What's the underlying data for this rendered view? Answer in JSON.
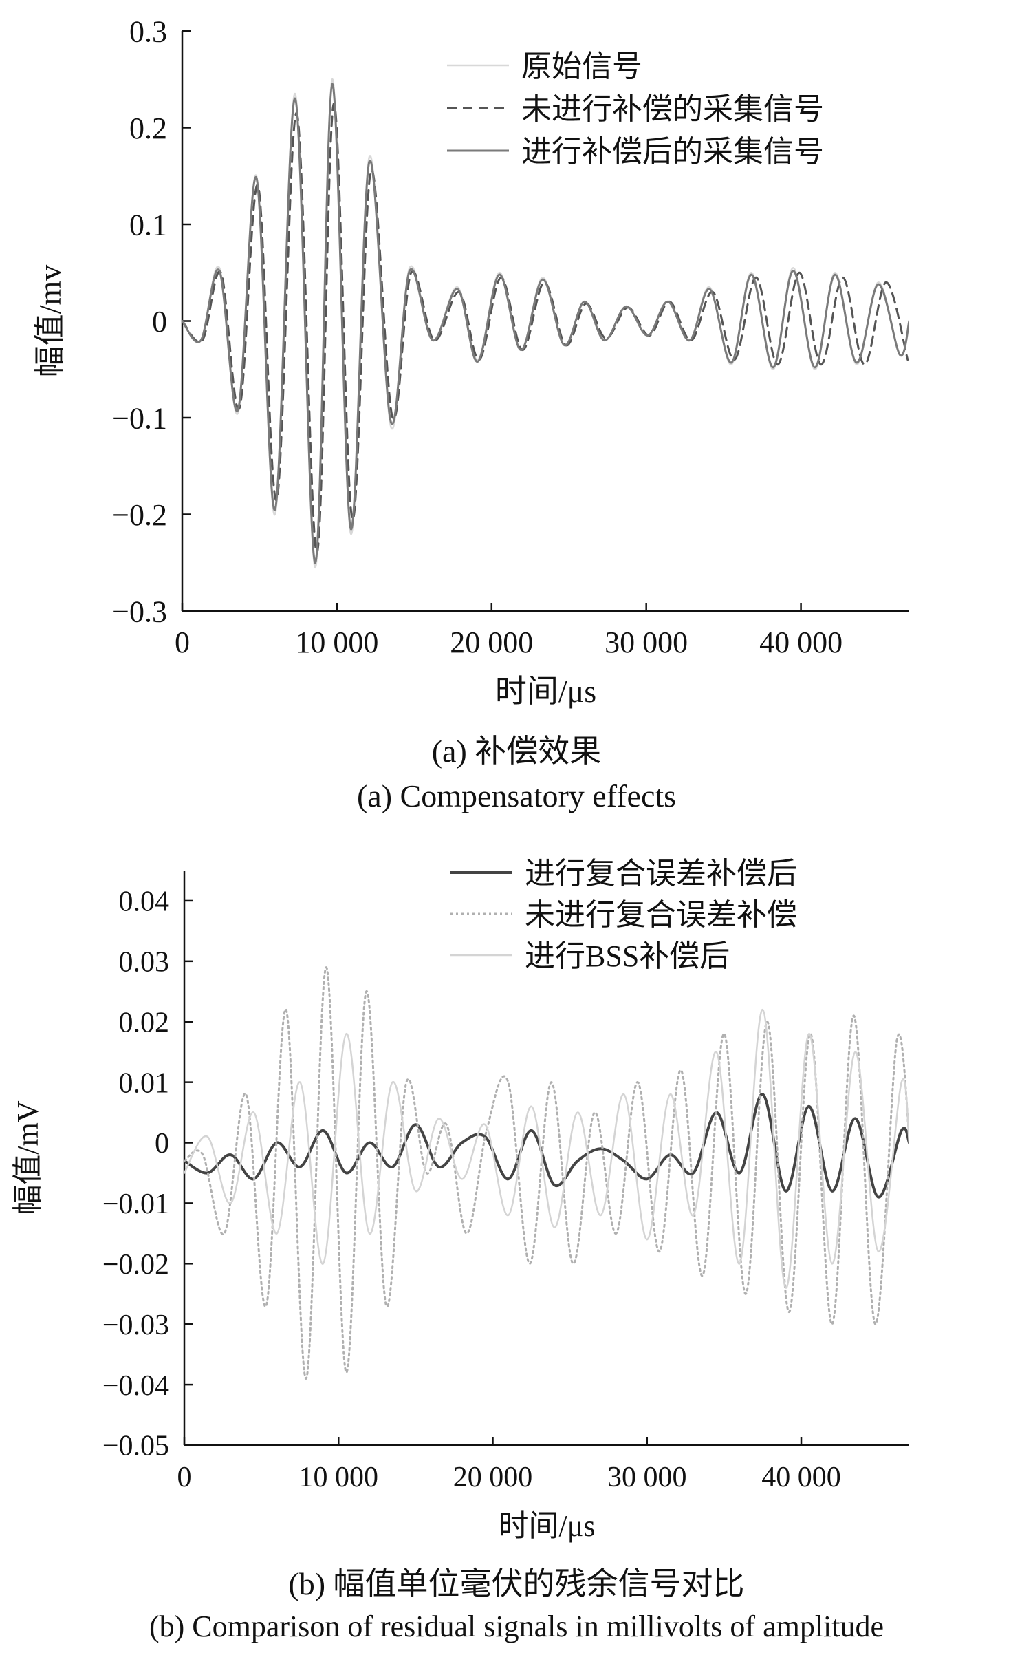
{
  "figure": {
    "caption_a_cn": "(a) 补偿效果",
    "caption_a_en": "(a) Compensatory effects",
    "caption_b_cn": "(b) 幅值单位毫伏的残余信号对比",
    "caption_b_en": "(b) Comparison of residual signals in millivolts of amplitude"
  },
  "chart_data": [
    {
      "id": "a",
      "type": "line",
      "title": "",
      "xlabel": "时间/μs",
      "ylabel": "幅值/mv",
      "xlim": [
        0,
        47000
      ],
      "ylim": [
        -0.3,
        0.3
      ],
      "xticks": [
        0,
        10000,
        20000,
        30000,
        40000
      ],
      "xtick_labels": [
        "0",
        "10 000",
        "20 000",
        "30 000",
        "40 000"
      ],
      "yticks": [
        -0.3,
        -0.2,
        -0.1,
        0,
        0.1,
        0.2,
        0.3
      ],
      "ytick_labels": [
        "−0.3",
        "−0.2",
        "−0.1",
        "0",
        "0.1",
        "0.2",
        "0.3"
      ],
      "grid": false,
      "legend_position": "top-right",
      "colors": {
        "original": "#d8d8d8",
        "uncompensated": "#555555",
        "compensated": "#7a7a7a"
      },
      "series": [
        {
          "name": "原始信号",
          "style": "solid-light",
          "x": [
            0,
            1200,
            2400,
            3600,
            4800,
            6000,
            7300,
            8600,
            9700,
            10900,
            12100,
            13500,
            14700,
            16200,
            17800,
            19100,
            20500,
            21900,
            23300,
            24700,
            26000,
            27300,
            28700,
            30100,
            31400,
            32800,
            34100,
            35500,
            36800,
            38200,
            39500,
            40900,
            42200,
            43600,
            45000,
            46400,
            47000
          ],
          "y": [
            0,
            -0.02,
            0.055,
            -0.095,
            0.15,
            -0.2,
            0.235,
            -0.255,
            0.25,
            -0.22,
            0.17,
            -0.11,
            0.055,
            -0.02,
            0.035,
            -0.04,
            0.05,
            -0.03,
            0.045,
            -0.025,
            0.02,
            -0.02,
            0.015,
            -0.015,
            0.02,
            -0.02,
            0.035,
            -0.045,
            0.05,
            -0.05,
            0.055,
            -0.05,
            0.05,
            -0.045,
            0.04,
            -0.035,
            0.0
          ]
        },
        {
          "name": "未进行补偿的采集信号",
          "style": "dashed",
          "x": [
            0,
            1300,
            2500,
            3700,
            4900,
            6100,
            7400,
            8700,
            9800,
            11000,
            12200,
            13600,
            14800,
            16300,
            17900,
            19200,
            20600,
            22000,
            23400,
            24800,
            26100,
            27400,
            28800,
            30200,
            31500,
            32900,
            34300,
            35700,
            37100,
            38500,
            39900,
            41300,
            42700,
            44100,
            45500,
            46900
          ],
          "y": [
            0,
            -0.02,
            0.05,
            -0.09,
            0.14,
            -0.185,
            0.215,
            -0.24,
            0.225,
            -0.205,
            0.155,
            -0.1,
            0.05,
            -0.02,
            0.03,
            -0.04,
            0.045,
            -0.03,
            0.04,
            -0.025,
            0.018,
            -0.018,
            0.014,
            -0.015,
            0.02,
            -0.02,
            0.03,
            -0.04,
            0.045,
            -0.045,
            0.05,
            -0.045,
            0.045,
            -0.045,
            0.04,
            -0.04
          ]
        },
        {
          "name": "进行补偿后的采集信号",
          "style": "solid",
          "x": [
            0,
            1200,
            2400,
            3600,
            4800,
            6000,
            7300,
            8600,
            9700,
            10900,
            12100,
            13500,
            14700,
            16200,
            17800,
            19100,
            20500,
            21900,
            23300,
            24700,
            26000,
            27300,
            28700,
            30100,
            31400,
            32800,
            34100,
            35500,
            36800,
            38200,
            39500,
            40900,
            42200,
            43600,
            45000,
            46400,
            47000
          ],
          "y": [
            0,
            -0.02,
            0.052,
            -0.092,
            0.148,
            -0.195,
            0.23,
            -0.25,
            0.245,
            -0.215,
            0.165,
            -0.105,
            0.052,
            -0.02,
            0.033,
            -0.042,
            0.048,
            -0.03,
            0.043,
            -0.025,
            0.02,
            -0.02,
            0.015,
            -0.015,
            0.02,
            -0.02,
            0.033,
            -0.043,
            0.048,
            -0.048,
            0.052,
            -0.048,
            0.048,
            -0.043,
            0.038,
            -0.035,
            0.0
          ]
        }
      ]
    },
    {
      "id": "b",
      "type": "line",
      "title": "",
      "xlabel": "时间/μs",
      "ylabel": "幅值/mV",
      "xlim": [
        0,
        47000
      ],
      "ylim": [
        -0.05,
        0.045
      ],
      "xticks": [
        0,
        10000,
        20000,
        30000,
        40000
      ],
      "xtick_labels": [
        "0",
        "10 000",
        "20 000",
        "30 000",
        "40 000"
      ],
      "yticks": [
        -0.05,
        -0.04,
        -0.03,
        -0.02,
        -0.01,
        0,
        0.01,
        0.02,
        0.03,
        0.04
      ],
      "ytick_labels": [
        "−0.05",
        "−0.04",
        "−0.03",
        "−0.02",
        "−0.01",
        "0",
        "0.01",
        "0.02",
        "0.03",
        "0.04"
      ],
      "grid": false,
      "legend_position": "top-right",
      "colors": {
        "compensated": "#444444",
        "uncompensated": "#b0b0b0",
        "bss": "#d4d4d4"
      },
      "series": [
        {
          "name": "进行复合误差补偿后",
          "style": "solid-dark",
          "x": [
            0,
            1500,
            3000,
            4500,
            6000,
            7500,
            9000,
            10500,
            12000,
            13500,
            15000,
            16500,
            18000,
            19500,
            21000,
            22500,
            24000,
            25500,
            27000,
            28500,
            30000,
            31500,
            33000,
            34500,
            36000,
            37500,
            39000,
            40500,
            42000,
            43500,
            45000,
            46500,
            47000
          ],
          "y": [
            -0.003,
            -0.005,
            -0.002,
            -0.006,
            0.0,
            -0.004,
            0.002,
            -0.005,
            0.0,
            -0.004,
            0.003,
            -0.004,
            0.0,
            0.001,
            -0.006,
            0.002,
            -0.007,
            -0.003,
            -0.001,
            -0.003,
            -0.006,
            -0.002,
            -0.005,
            0.005,
            -0.005,
            0.008,
            -0.008,
            0.006,
            -0.008,
            0.004,
            -0.009,
            0.002,
            0.0
          ]
        },
        {
          "name": "未进行复合误差补偿",
          "style": "dotted",
          "x": [
            0,
            1200,
            2600,
            4000,
            5300,
            6600,
            7900,
            9200,
            10500,
            11800,
            13100,
            14400,
            15700,
            17000,
            18300,
            19600,
            21000,
            22400,
            23800,
            25200,
            26600,
            28000,
            29400,
            30800,
            32200,
            33600,
            35000,
            36400,
            37800,
            39200,
            40600,
            42000,
            43400,
            44800,
            46200,
            47000
          ],
          "y": [
            -0.003,
            -0.002,
            -0.015,
            0.008,
            -0.027,
            0.022,
            -0.039,
            0.029,
            -0.038,
            0.025,
            -0.027,
            0.01,
            -0.005,
            0.003,
            -0.015,
            0.002,
            0.01,
            -0.02,
            0.01,
            -0.02,
            0.005,
            -0.015,
            0.01,
            -0.018,
            0.012,
            -0.022,
            0.018,
            -0.025,
            0.02,
            -0.028,
            0.018,
            -0.03,
            0.021,
            -0.03,
            0.017,
            0.001
          ]
        },
        {
          "name": "进行BSS补偿后",
          "style": "solid-light",
          "x": [
            0,
            1500,
            3000,
            4500,
            6000,
            7500,
            9000,
            10500,
            12000,
            13500,
            15000,
            16500,
            18000,
            19500,
            21000,
            22500,
            24000,
            25500,
            27000,
            28500,
            30000,
            31500,
            33000,
            34500,
            36000,
            37500,
            39000,
            40500,
            42000,
            43500,
            45000,
            46500,
            47000
          ],
          "y": [
            -0.005,
            0.001,
            -0.01,
            0.005,
            -0.015,
            0.01,
            -0.02,
            0.018,
            -0.015,
            0.01,
            -0.008,
            0.004,
            -0.006,
            0.003,
            -0.012,
            0.006,
            -0.014,
            0.005,
            -0.012,
            0.008,
            -0.016,
            0.008,
            -0.012,
            0.015,
            -0.02,
            0.022,
            -0.024,
            0.018,
            -0.02,
            0.015,
            -0.018,
            0.01,
            0.0
          ]
        }
      ]
    }
  ]
}
